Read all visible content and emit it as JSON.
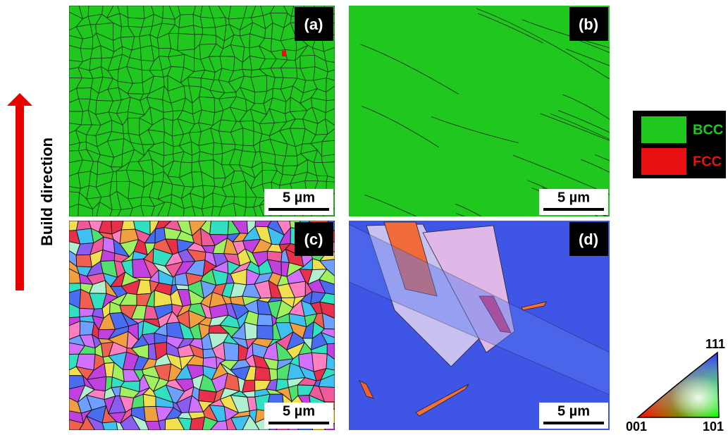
{
  "panels": [
    {
      "label": "(a)",
      "scale_bar": "5 µm"
    },
    {
      "label": "(b)",
      "scale_bar": "5 µm"
    },
    {
      "label": "(c)",
      "scale_bar": "5 µm"
    },
    {
      "label": "(d)",
      "scale_bar": "5 µm"
    }
  ],
  "build_direction": "Build direction",
  "legend": [
    {
      "label": "BCC",
      "color": "#1fc71f"
    },
    {
      "label": "FCC",
      "color": "#e81010"
    }
  ],
  "ipf": {
    "top": "111",
    "left": "001",
    "right": "101"
  }
}
